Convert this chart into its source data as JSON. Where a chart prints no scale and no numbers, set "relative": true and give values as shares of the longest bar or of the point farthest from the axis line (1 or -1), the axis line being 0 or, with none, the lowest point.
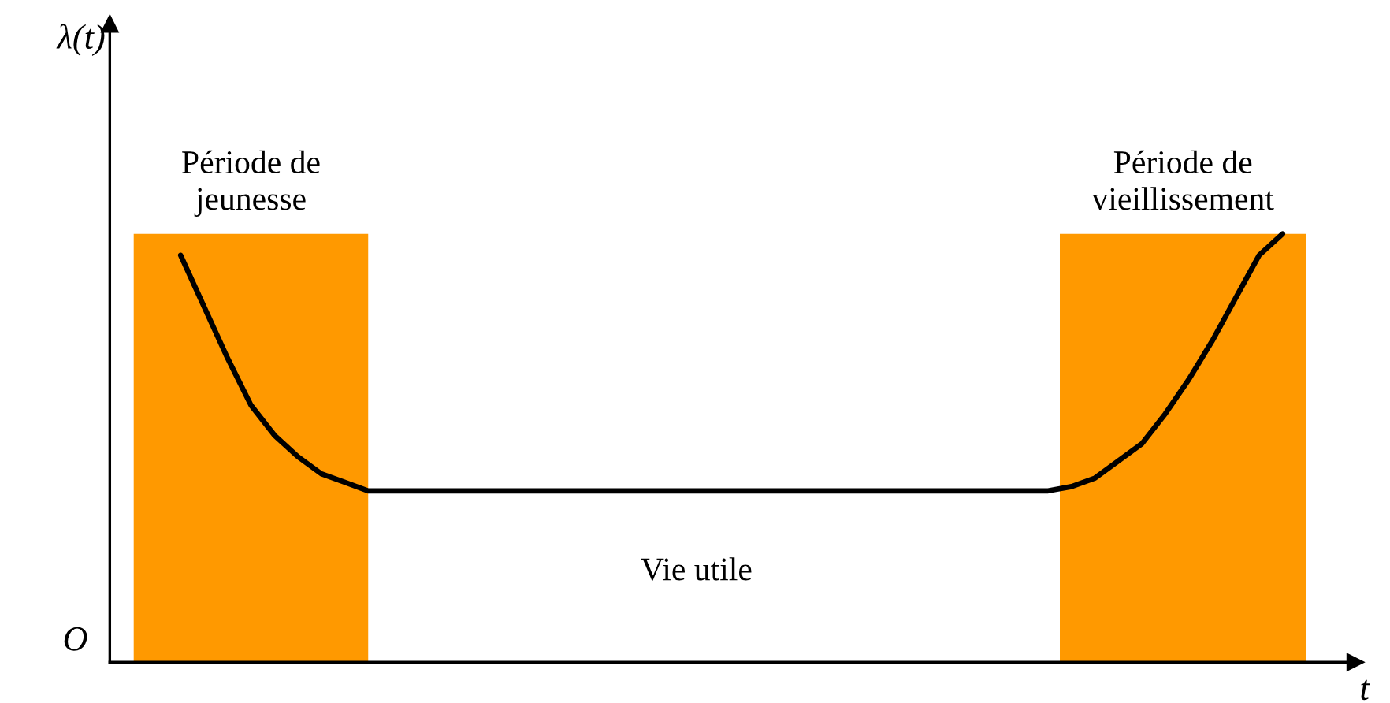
{
  "chart_data": {
    "type": "line",
    "relative": true,
    "xlabel": "t",
    "categories": [
      null,
      null,
      null,
      null,
      null,
      null,
      null,
      null,
      null,
      null,
      null,
      null,
      null,
      null,
      null,
      null,
      null,
      null,
      null,
      null,
      null,
      null,
      null,
      null,
      null,
      null,
      null,
      null,
      null,
      null,
      null,
      null,
      null,
      null,
      null,
      null,
      null,
      null,
      null,
      null,
      null,
      null,
      null,
      null,
      null,
      null,
      null,
      null,
      null,
      null,
      null
    ],
    "series": [
      {
        "color": "#000000",
        "values": [
          null,
          null,
          0.95,
          0.83,
          0.71,
          0.6,
          0.53,
          0.48,
          0.44,
          0.42,
          0.4,
          0.4,
          0.4,
          0.4,
          0.4,
          0.4,
          0.4,
          0.4,
          0.4,
          0.4,
          0.4,
          0.4,
          0.4,
          0.4,
          0.4,
          0.4,
          0.4,
          0.4,
          0.4,
          0.4,
          0.4,
          0.4,
          0.4,
          0.4,
          0.4,
          0.4,
          0.4,
          0.4,
          0.4,
          0.4,
          0.41,
          0.43,
          0.47,
          0.51,
          0.58,
          0.66,
          0.75,
          0.85,
          0.95,
          1.0,
          null
        ]
      }
    ],
    "annotations": [
      "Période de\njeunesse",
      "Période de\nvieillissement",
      "Vie utile",
      "O",
      "λ(t)"
    ],
    "legend": false,
    "marker": "none",
    "line_style": "solid"
  }
}
